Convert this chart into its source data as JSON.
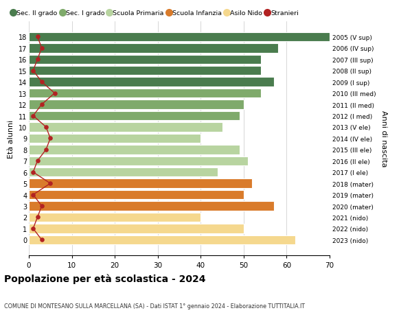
{
  "ages": [
    18,
    17,
    16,
    15,
    14,
    13,
    12,
    11,
    10,
    9,
    8,
    7,
    6,
    5,
    4,
    3,
    2,
    1,
    0
  ],
  "bar_values": [
    70,
    58,
    54,
    54,
    57,
    54,
    50,
    49,
    45,
    40,
    49,
    51,
    44,
    52,
    50,
    57,
    40,
    50,
    62
  ],
  "stranieri": [
    2,
    3,
    2,
    1,
    3,
    6,
    3,
    1,
    4,
    5,
    4,
    2,
    1,
    5,
    1,
    3,
    2,
    1,
    3
  ],
  "right_labels": [
    "2005 (V sup)",
    "2006 (IV sup)",
    "2007 (III sup)",
    "2008 (II sup)",
    "2009 (I sup)",
    "2010 (III med)",
    "2011 (II med)",
    "2012 (I med)",
    "2013 (V ele)",
    "2014 (IV ele)",
    "2015 (III ele)",
    "2016 (II ele)",
    "2017 (I ele)",
    "2018 (mater)",
    "2019 (mater)",
    "2020 (mater)",
    "2021 (nido)",
    "2022 (nido)",
    "2023 (nido)"
  ],
  "bar_colors": {
    "sec2": "#4a7c4e",
    "sec1": "#7faa6b",
    "primaria": "#b8d4a0",
    "infanzia": "#d97b2b",
    "nido": "#f5d88e"
  },
  "age_groups": {
    "sec2": [
      14,
      15,
      16,
      17,
      18
    ],
    "sec1": [
      11,
      12,
      13
    ],
    "primaria": [
      6,
      7,
      8,
      9,
      10
    ],
    "infanzia": [
      3,
      4,
      5
    ],
    "nido": [
      0,
      1,
      2
    ]
  },
  "legend_labels": [
    "Sec. II grado",
    "Sec. I grado",
    "Scuola Primaria",
    "Scuola Infanzia",
    "Asilo Nido",
    "Stranieri"
  ],
  "ylabel": "Età alunni",
  "right_ylabel": "Anni di nascita",
  "title": "Popolazione per età scolastica - 2024",
  "subtitle": "COMUNE DI MONTESANO SULLA MARCELLANA (SA) - Dati ISTAT 1° gennaio 2024 - Elaborazione TUTTITALIA.IT",
  "xlim": [
    0,
    70
  ],
  "xticks": [
    0,
    10,
    20,
    30,
    40,
    50,
    60,
    70
  ],
  "stranieri_color": "#b22222",
  "background_color": "#ffffff",
  "grid_color": "#d0d0d0"
}
